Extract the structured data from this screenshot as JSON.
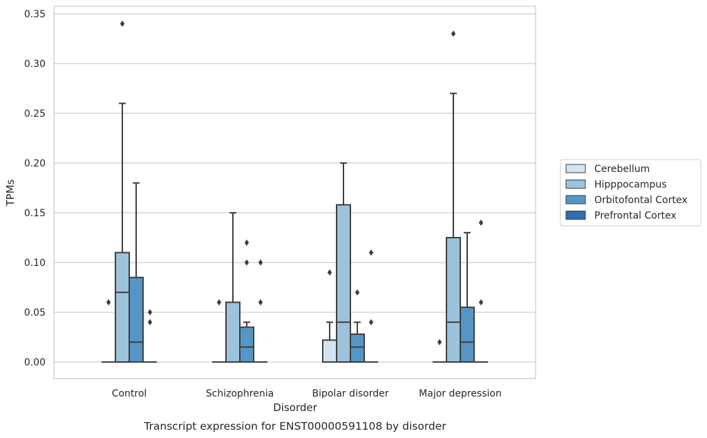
{
  "chart_data": {
    "type": "box",
    "xlabel": "Disorder",
    "ylabel": "TPMs",
    "caption": "Transcript expression for ENST00000591108 by disorder",
    "ylim": [
      -0.017,
      0.36
    ],
    "yticks": [
      "0.00",
      "0.05",
      "0.10",
      "0.15",
      "0.20",
      "0.25",
      "0.30",
      "0.35"
    ],
    "ytick_values": [
      0,
      0.05,
      0.1,
      0.15,
      0.2,
      0.25,
      0.3,
      0.35
    ],
    "grid": true,
    "legend_position": "right",
    "categories": [
      "Control",
      "Schizophrenia",
      "Bipolar disorder",
      "Major depression"
    ],
    "series": [
      {
        "name": "Cerebellum",
        "color": "#d6e3ef",
        "boxes": [
          {
            "q1": 0,
            "median": 0,
            "q3": 0,
            "whisker_low": 0,
            "whisker_high": 0,
            "outliers": [
              0.06
            ]
          },
          {
            "q1": 0,
            "median": 0,
            "q3": 0,
            "whisker_low": 0,
            "whisker_high": 0,
            "outliers": [
              0.06
            ]
          },
          {
            "q1": 0,
            "median": 0,
            "q3": 0.022,
            "whisker_low": 0,
            "whisker_high": 0.04,
            "outliers": [
              0.09
            ]
          },
          {
            "q1": 0,
            "median": 0,
            "q3": 0,
            "whisker_low": 0,
            "whisker_high": 0,
            "outliers": [
              0.02
            ]
          }
        ]
      },
      {
        "name": "Hipppocampus",
        "color": "#9dc3dc",
        "boxes": [
          {
            "q1": 0,
            "median": 0.07,
            "q3": 0.11,
            "whisker_low": 0,
            "whisker_high": 0.26,
            "outliers": [
              0.34
            ]
          },
          {
            "q1": 0,
            "median": 0,
            "q3": 0.06,
            "whisker_low": 0,
            "whisker_high": 0.15,
            "outliers": []
          },
          {
            "q1": 0,
            "median": 0.04,
            "q3": 0.158,
            "whisker_low": 0,
            "whisker_high": 0.2,
            "outliers": []
          },
          {
            "q1": 0,
            "median": 0.04,
            "q3": 0.125,
            "whisker_low": 0,
            "whisker_high": 0.27,
            "outliers": [
              0.33
            ]
          }
        ]
      },
      {
        "name": "Orbitofontal Cortex",
        "color": "#5596c6",
        "boxes": [
          {
            "q1": 0,
            "median": 0.02,
            "q3": 0.085,
            "whisker_low": 0,
            "whisker_high": 0.18,
            "outliers": []
          },
          {
            "q1": 0,
            "median": 0.015,
            "q3": 0.035,
            "whisker_low": 0,
            "whisker_high": 0.04,
            "outliers": [
              0.1,
              0.12
            ]
          },
          {
            "q1": 0,
            "median": 0.015,
            "q3": 0.028,
            "whisker_low": 0,
            "whisker_high": 0.04,
            "outliers": [
              0.07
            ]
          },
          {
            "q1": 0,
            "median": 0.02,
            "q3": 0.055,
            "whisker_low": 0,
            "whisker_high": 0.13,
            "outliers": []
          }
        ]
      },
      {
        "name": "Prefrontal Cortex",
        "color": "#2e6fae",
        "boxes": [
          {
            "q1": 0,
            "median": 0,
            "q3": 0,
            "whisker_low": 0,
            "whisker_high": 0,
            "outliers": [
              0.04,
              0.05
            ]
          },
          {
            "q1": 0,
            "median": 0,
            "q3": 0,
            "whisker_low": 0,
            "whisker_high": 0,
            "outliers": [
              0.06,
              0.1
            ]
          },
          {
            "q1": 0,
            "median": 0,
            "q3": 0,
            "whisker_low": 0,
            "whisker_high": 0,
            "outliers": [
              0.04,
              0.11
            ]
          },
          {
            "q1": 0,
            "median": 0,
            "q3": 0,
            "whisker_low": 0,
            "whisker_high": 0,
            "outliers": [
              0.06,
              0.14
            ]
          }
        ]
      }
    ]
  }
}
